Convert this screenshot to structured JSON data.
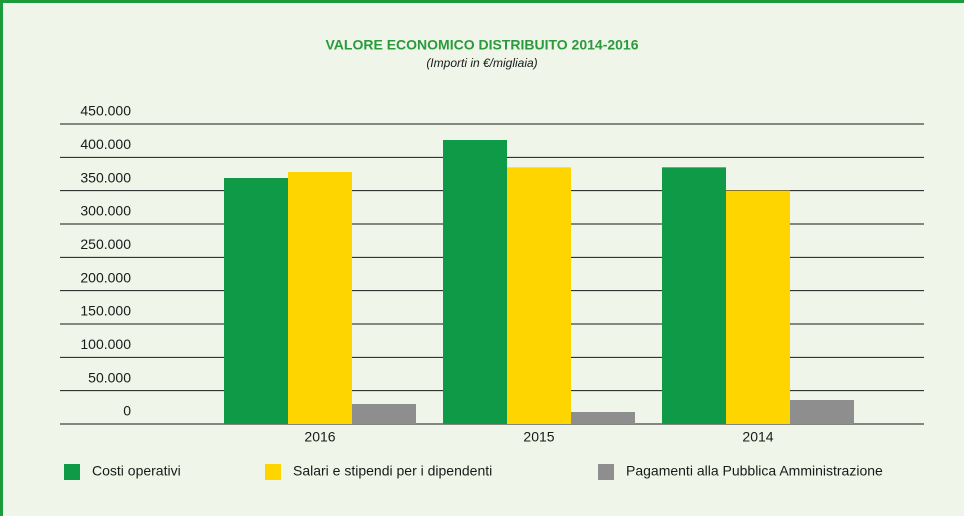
{
  "chart_data": {
    "type": "bar",
    "title": "VALORE ECONOMICO DISTRIBUITO 2014-2016",
    "subtitle": "(Importi in €/migliaia)",
    "categories": [
      "2016",
      "2015",
      "2014"
    ],
    "series": [
      {
        "name": "Costi operativi",
        "color": "#0f9a48",
        "values": [
          369000,
          426000,
          385000
        ]
      },
      {
        "name": "Salari e stipendi per i dipendenti",
        "color": "#ffd500",
        "values": [
          378000,
          385000,
          350000
        ]
      },
      {
        "name": "Pagamenti alla Pubblica Amministrazione",
        "color": "#8e8e8e",
        "values": [
          30000,
          18000,
          36000
        ]
      }
    ],
    "ylim": [
      0,
      450000
    ],
    "yticks": [
      0,
      {
        "value": 50000,
        "label": "50.000"
      },
      {
        "value": 100000,
        "label": "100.000"
      },
      {
        "value": 150000,
        "label": "150.000"
      },
      {
        "value": 200000,
        "label": "200.000"
      },
      {
        "value": 250000,
        "label": "250.000"
      },
      {
        "value": 300000,
        "label": "300.000"
      },
      {
        "value": 350000,
        "label": "350.000"
      },
      {
        "value": 400000,
        "label": "400.000"
      },
      {
        "value": 450000,
        "label": "450.000"
      }
    ],
    "grid": true
  }
}
